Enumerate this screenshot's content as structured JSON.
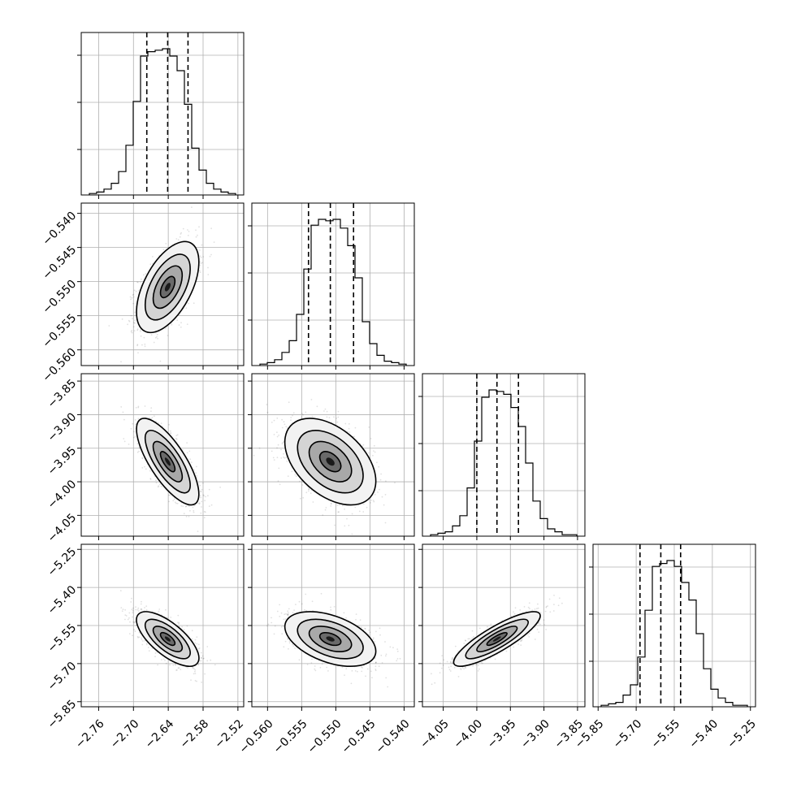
{
  "chart_data": {
    "type": "corner",
    "grid": true,
    "parameters": [
      {
        "range": [
          -2.79,
          -2.51
        ],
        "ticks": [
          -2.76,
          -2.7,
          -2.64,
          -2.58,
          -2.52
        ],
        "tick_labels": [
          "−2.76",
          "−2.70",
          "−2.64",
          "−2.58",
          "−2.52"
        ],
        "quantiles": [
          -2.677,
          -2.641,
          -2.606
        ],
        "mean": -2.641,
        "sd": 0.025
      },
      {
        "range": [
          -0.5623,
          -0.5385
        ],
        "ticks": [
          -0.56,
          -0.555,
          -0.55,
          -0.545,
          -0.54
        ],
        "tick_labels": [
          "−0.560",
          "−0.555",
          "−0.550",
          "−0.545",
          "−0.540"
        ],
        "quantiles": [
          -0.554,
          -0.5508,
          -0.5474
        ],
        "mean": -0.5508,
        "sd": 0.0031
      },
      {
        "range": [
          -4.081,
          -3.839
        ],
        "ticks": [
          -4.05,
          -4.0,
          -3.95,
          -3.9,
          -3.85
        ],
        "tick_labels": [
          "−4.05",
          "−4.00",
          "−3.95",
          "−3.90",
          "−3.85"
        ],
        "quantiles": [
          -4.0,
          -3.97,
          -3.938
        ],
        "mean": -3.97,
        "sd": 0.03
      },
      {
        "range": [
          -5.87,
          -5.23
        ],
        "ticks": [
          -5.85,
          -5.7,
          -5.55,
          -5.4,
          -5.25
        ],
        "tick_labels": [
          "−5.85",
          "−5.70",
          "−5.55",
          "−5.40",
          "−5.25"
        ],
        "quantiles": [
          -5.685,
          -5.603,
          -5.525
        ],
        "mean": -5.603,
        "sd": 0.05
      }
    ],
    "correlations": {
      "1-0": 0.55,
      "2-0": -0.75,
      "2-1": -0.45,
      "3-0": -0.7,
      "3-1": -0.45,
      "3-2": 0.85
    },
    "histograms": [
      [
        1,
        2,
        4,
        8,
        16,
        34,
        64,
        95,
        98,
        99,
        100,
        95,
        85,
        62,
        32,
        17,
        8,
        4,
        2,
        1
      ],
      [
        1,
        2,
        4,
        9,
        17,
        35,
        66,
        96,
        100,
        99,
        100,
        94,
        82,
        60,
        30,
        15,
        7,
        3,
        2,
        1
      ],
      [
        1,
        2,
        3,
        7,
        14,
        33,
        65,
        95,
        100,
        99,
        97,
        88,
        75,
        50,
        24,
        12,
        5,
        3,
        1,
        1
      ],
      [
        1,
        2,
        3,
        8,
        15,
        34,
        66,
        96,
        98,
        100,
        96,
        85,
        73,
        50,
        26,
        12,
        6,
        3,
        1,
        1
      ]
    ]
  }
}
